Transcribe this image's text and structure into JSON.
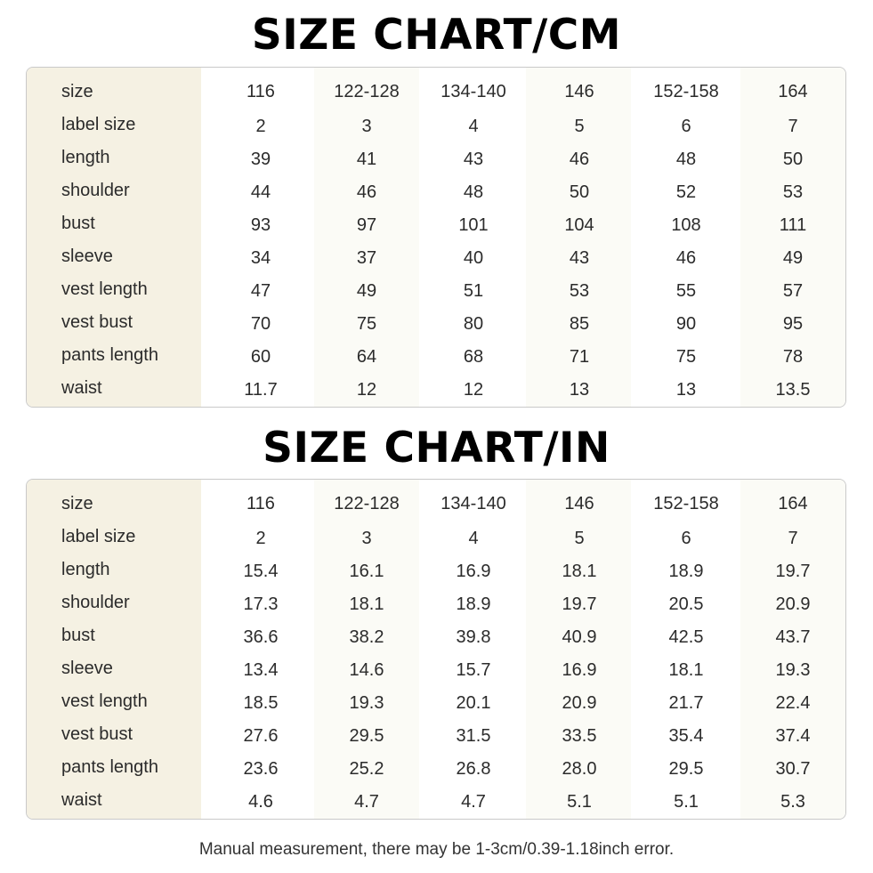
{
  "cm_chart": {
    "title": "SIZE CHART/CM",
    "rows": [
      {
        "label": "size",
        "values": [
          "116",
          "122-128",
          "134-140",
          "146",
          "152-158",
          "164"
        ]
      },
      {
        "label": "label size",
        "values": [
          "2",
          "3",
          "4",
          "5",
          "6",
          "7"
        ]
      },
      {
        "label": "length",
        "values": [
          "39",
          "41",
          "43",
          "46",
          "48",
          "50"
        ]
      },
      {
        "label": "shoulder",
        "values": [
          "44",
          "46",
          "48",
          "50",
          "52",
          "53"
        ]
      },
      {
        "label": "bust",
        "values": [
          "93",
          "97",
          "101",
          "104",
          "108",
          "111"
        ]
      },
      {
        "label": "sleeve",
        "values": [
          "34",
          "37",
          "40",
          "43",
          "46",
          "49"
        ]
      },
      {
        "label": "vest length",
        "values": [
          "47",
          "49",
          "51",
          "53",
          "55",
          "57"
        ]
      },
      {
        "label": "vest bust",
        "values": [
          "70",
          "75",
          "80",
          "85",
          "90",
          "95"
        ]
      },
      {
        "label": "pants length",
        "values": [
          "60",
          "64",
          "68",
          "71",
          "75",
          "78"
        ]
      },
      {
        "label": "waist",
        "values": [
          "11.7",
          "12",
          "12",
          "13",
          "13",
          "13.5"
        ]
      }
    ]
  },
  "in_chart": {
    "title": "SIZE CHART/IN",
    "rows": [
      {
        "label": "size",
        "values": [
          "116",
          "122-128",
          "134-140",
          "146",
          "152-158",
          "164"
        ]
      },
      {
        "label": "label size",
        "values": [
          "2",
          "3",
          "4",
          "5",
          "6",
          "7"
        ]
      },
      {
        "label": "length",
        "values": [
          "15.4",
          "16.1",
          "16.9",
          "18.1",
          "18.9",
          "19.7"
        ]
      },
      {
        "label": "shoulder",
        "values": [
          "17.3",
          "18.1",
          "18.9",
          "19.7",
          "20.5",
          "20.9"
        ]
      },
      {
        "label": "bust",
        "values": [
          "36.6",
          "38.2",
          "39.8",
          "40.9",
          "42.5",
          "43.7"
        ]
      },
      {
        "label": "sleeve",
        "values": [
          "13.4",
          "14.6",
          "15.7",
          "16.9",
          "18.1",
          "19.3"
        ]
      },
      {
        "label": "vest length",
        "values": [
          "18.5",
          "19.3",
          "20.1",
          "20.9",
          "21.7",
          "22.4"
        ]
      },
      {
        "label": "vest bust",
        "values": [
          "27.6",
          "29.5",
          "31.5",
          "33.5",
          "35.4",
          "37.4"
        ]
      },
      {
        "label": "pants length",
        "values": [
          "23.6",
          "25.2",
          "26.8",
          "28.0",
          "29.5",
          "30.7"
        ]
      },
      {
        "label": "waist",
        "values": [
          "4.6",
          "4.7",
          "4.7",
          "5.1",
          "5.1",
          "5.3"
        ]
      }
    ]
  },
  "footer": {
    "note": "Manual measurement, there may be 1-3cm/0.39-1.18inch error."
  },
  "colors": {
    "label_column_bg": "#f5f1e3",
    "alt_column_bg": "#fbfbf6",
    "border": "#c9c9c9",
    "title": "#000000"
  }
}
